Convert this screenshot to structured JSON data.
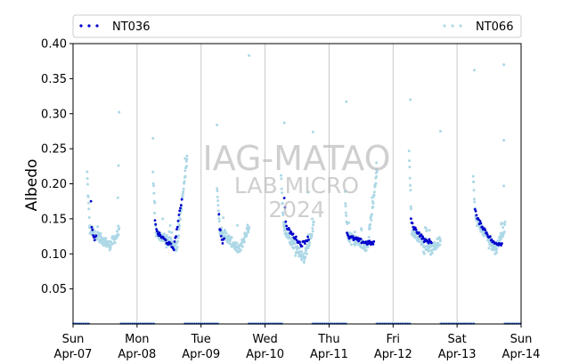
{
  "chart_data": {
    "type": "scatter",
    "ylabel": "Albedo",
    "ylim": [
      0.0,
      0.4
    ],
    "xlim_days": [
      0,
      7
    ],
    "y_ticks": [
      "0.05",
      "0.10",
      "0.15",
      "0.20",
      "0.25",
      "0.30",
      "0.35",
      "0.40"
    ],
    "y_tick_values": [
      0.05,
      0.1,
      0.15,
      0.2,
      0.25,
      0.3,
      0.35,
      0.4
    ],
    "x_ticks": [
      {
        "day": "Sun",
        "date": "Apr-07"
      },
      {
        "day": "Mon",
        "date": "Apr-08"
      },
      {
        "day": "Tue",
        "date": "Apr-09"
      },
      {
        "day": "Wed",
        "date": "Apr-10"
      },
      {
        "day": "Thu",
        "date": "Apr-11"
      },
      {
        "day": "Fri",
        "date": "Apr-12"
      },
      {
        "day": "Sat",
        "date": "Apr-13"
      },
      {
        "day": "Sun",
        "date": "Apr-14"
      }
    ],
    "grid": "vertical-at-days",
    "legend_placement": "top, above plot",
    "series": [
      {
        "name": "NT036",
        "color": "#0000cc",
        "days": [
          {
            "start": 0.28,
            "end": 0.36,
            "v0": 0.178,
            "dip": 0.138,
            "vmin": 0.118,
            "vend": 0.125
          },
          {
            "start": 1.28,
            "end": 1.7,
            "v0": 0.15,
            "dip": 0.13,
            "vmin": 0.108,
            "vend": 0.178
          },
          {
            "start": 2.28,
            "end": 2.36,
            "v0": 0.158,
            "dip": 0.14,
            "vmin": 0.117,
            "vend": 0.12
          },
          {
            "start": 3.3,
            "end": 3.68,
            "v0": 0.182,
            "dip": 0.138,
            "vmin": 0.113,
            "vend": 0.123
          },
          {
            "start": 4.28,
            "end": 4.7,
            "v0": 0.13,
            "dip": 0.124,
            "vmin": 0.116,
            "vend": 0.115
          },
          {
            "start": 5.28,
            "end": 5.6,
            "v0": 0.15,
            "dip": 0.14,
            "vmin": 0.118,
            "vend": 0.118
          },
          {
            "start": 6.28,
            "end": 6.7,
            "v0": 0.165,
            "dip": 0.15,
            "vmin": 0.115,
            "vend": 0.115
          }
        ]
      },
      {
        "name": "NT066",
        "color": "#add8e6",
        "days": [
          {
            "start": 0.22,
            "end": 0.72,
            "v0": 0.215,
            "dip": 0.135,
            "vmin": 0.112,
            "vend": 0.13,
            "spikes": [
              [
                0.72,
                0.302
              ],
              [
                0.71,
                0.226
              ],
              [
                0.7,
                0.18
              ]
            ]
          },
          {
            "start": 1.25,
            "end": 1.78,
            "v0": 0.21,
            "dip": 0.13,
            "vmin": 0.11,
            "vend": 0.235,
            "spikes": [
              [
                1.25,
                0.265
              ],
              [
                1.75,
                0.236
              ],
              [
                1.78,
                0.235
              ]
            ]
          },
          {
            "start": 2.25,
            "end": 2.75,
            "v0": 0.2,
            "dip": 0.135,
            "vmin": 0.105,
            "vend": 0.14,
            "spikes": [
              [
                2.25,
                0.284
              ],
              [
                2.75,
                0.383
              ]
            ]
          },
          {
            "start": 3.25,
            "end": 3.76,
            "v0": 0.215,
            "dip": 0.135,
            "vmin": 0.093,
            "vend": 0.14,
            "spikes": [
              [
                3.3,
                0.287
              ],
              [
                3.75,
                0.274
              ],
              [
                3.68,
                0.188
              ]
            ]
          },
          {
            "start": 4.25,
            "end": 4.75,
            "v0": 0.185,
            "dip": 0.125,
            "vmin": 0.11,
            "vend": 0.22,
            "spikes": [
              [
                4.27,
                0.317
              ],
              [
                4.74,
                0.23
              ]
            ]
          },
          {
            "start": 5.25,
            "end": 5.74,
            "v0": 0.25,
            "dip": 0.135,
            "vmin": 0.105,
            "vend": 0.12,
            "spikes": [
              [
                5.27,
                0.32
              ],
              [
                5.74,
                0.275
              ]
            ]
          },
          {
            "start": 6.25,
            "end": 6.75,
            "v0": 0.215,
            "dip": 0.15,
            "vmin": 0.105,
            "vend": 0.14,
            "spikes": [
              [
                6.27,
                0.362
              ],
              [
                6.73,
                0.37
              ],
              [
                6.73,
                0.262
              ],
              [
                6.73,
                0.197
              ]
            ]
          }
        ]
      }
    ],
    "night_band": {
      "value": 0.0,
      "ranges": [
        [
          0.0,
          0.25
        ],
        [
          0.74,
          1.27
        ],
        [
          1.74,
          2.27
        ],
        [
          2.74,
          3.27
        ],
        [
          3.74,
          4.27
        ],
        [
          4.74,
          5.27
        ],
        [
          5.74,
          6.27
        ],
        [
          6.74,
          7.0
        ]
      ]
    }
  },
  "watermark": {
    "line1": "IAG-MATAO",
    "line2": "LAB MICRO",
    "line3": "2024"
  }
}
